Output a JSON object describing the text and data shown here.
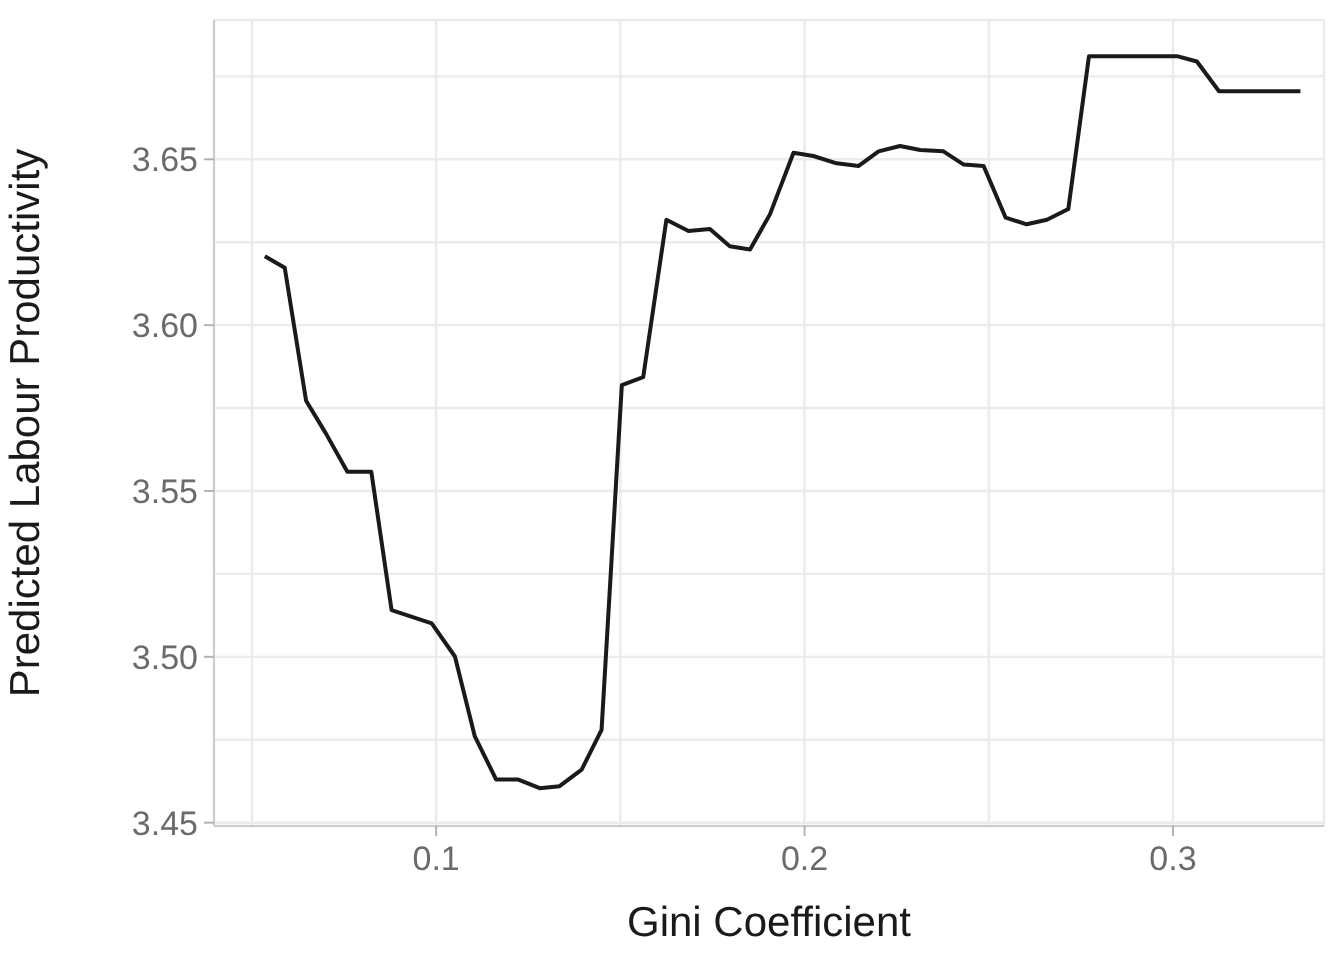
{
  "chart_data": {
    "type": "line",
    "xlabel": "Gini Coefficient",
    "ylabel": "Predicted Labour Productivity",
    "x": [
      0.0535,
      0.0589,
      0.0647,
      0.0701,
      0.0759,
      0.0824,
      0.0879,
      0.0988,
      0.1051,
      0.1105,
      0.1163,
      0.1223,
      0.1281,
      0.1335,
      0.1395,
      0.1449,
      0.1504,
      0.1562,
      0.1625,
      0.1685,
      0.1743,
      0.1797,
      0.1852,
      0.1906,
      0.197,
      0.2024,
      0.2087,
      0.2147,
      0.2201,
      0.2259,
      0.2314,
      0.2377,
      0.2432,
      0.2486,
      0.2546,
      0.2603,
      0.2658,
      0.2716,
      0.2772,
      0.2839,
      0.3011,
      0.3065,
      0.3125,
      0.3346
    ],
    "series": [
      {
        "color": "#1a1a1a",
        "values": [
          3.6208,
          3.6173,
          3.5772,
          3.5673,
          3.5558,
          3.5558,
          3.5141,
          3.5101,
          3.5001,
          3.476,
          3.463,
          3.463,
          3.4604,
          3.461,
          3.466,
          3.478,
          3.5819,
          3.5843,
          3.6318,
          3.6284,
          3.629,
          3.6238,
          3.6228,
          3.6334,
          3.652,
          3.651,
          3.6488,
          3.648,
          3.6524,
          3.654,
          3.6528,
          3.6524,
          3.6484,
          3.648,
          3.6324,
          3.6304,
          3.6318,
          3.635,
          3.6811,
          3.6811,
          3.6811,
          3.6795,
          3.6705,
          3.6705
        ]
      }
    ],
    "xlim": [
      0.0397,
      0.341
    ],
    "ylim": [
      3.449,
      3.692
    ],
    "xticks": [
      {
        "value": 0.05,
        "label": null
      },
      0.1,
      {
        "value": 0.15,
        "label": null
      },
      0.2,
      {
        "value": 0.25,
        "label": null
      },
      0.3
    ],
    "yticks": [
      3.45,
      {
        "value": 3.475,
        "label": null
      },
      {
        "value": 3.5,
        "label": "3.50"
      },
      {
        "value": 3.525,
        "label": null
      },
      3.55,
      {
        "value": 3.575,
        "label": null
      },
      {
        "value": 3.6,
        "label": "3.60"
      },
      {
        "value": 3.625,
        "label": null
      },
      3.65,
      {
        "value": 3.675,
        "label": null
      }
    ],
    "grid": true,
    "marker": "none",
    "line_style": "solid",
    "legend": false
  }
}
